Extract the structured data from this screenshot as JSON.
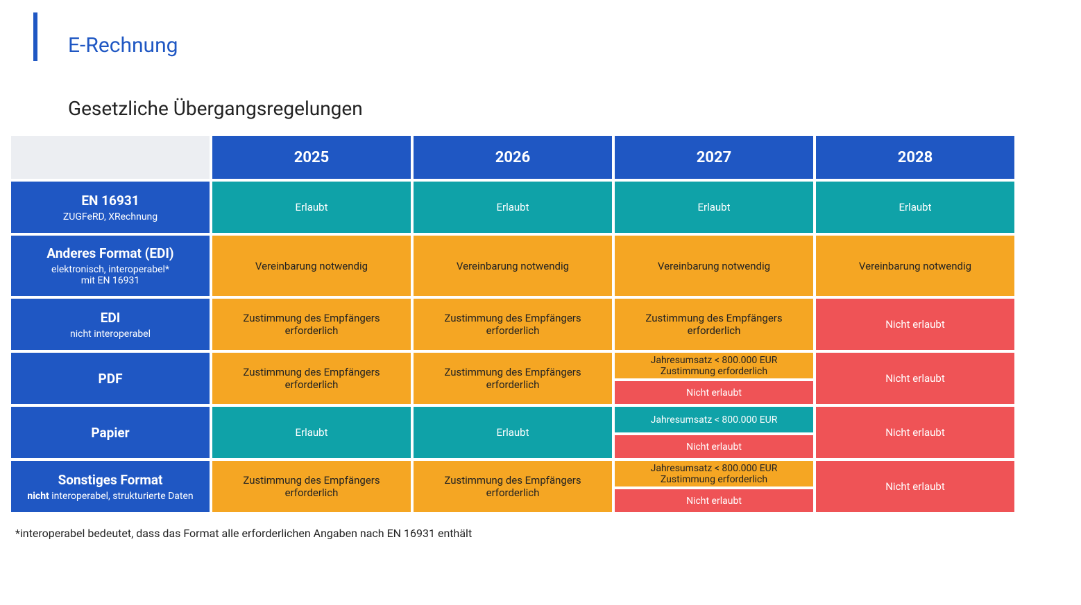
{
  "title": "E-Rechnung",
  "subtitle": "Gesetzliche Übergangsregelungen",
  "footnote": "*interoperabel bedeutet, dass das Format alle erforderlichen Angaben nach EN 16931 enthält",
  "colors": {
    "blue": "#1f57c3",
    "teal": "#0fa2a8",
    "orange": "#f5a623",
    "red": "#ef5356",
    "corner_bg": "#eceef2",
    "text_dark": "#222222",
    "text_light": "#ffffff"
  },
  "years": [
    "2025",
    "2026",
    "2027",
    "2028"
  ],
  "rows": [
    {
      "label_main": "EN 16931",
      "label_sub": "ZUGFeRD, XRechnung",
      "cells": [
        {
          "type": "single",
          "color": "teal",
          "text": "Erlaubt"
        },
        {
          "type": "single",
          "color": "teal",
          "text": "Erlaubt"
        },
        {
          "type": "single",
          "color": "teal",
          "text": "Erlaubt"
        },
        {
          "type": "single",
          "color": "teal",
          "text": "Erlaubt"
        }
      ]
    },
    {
      "label_main": "Anderes Format (EDI)",
      "label_sub_html": "elektronisch, interoperabel*<br>mit EN 16931",
      "cells": [
        {
          "type": "single",
          "color": "orange",
          "text": "Vereinbarung notwendig"
        },
        {
          "type": "single",
          "color": "orange",
          "text": "Vereinbarung notwendig"
        },
        {
          "type": "single",
          "color": "orange",
          "text": "Vereinbarung notwendig"
        },
        {
          "type": "single",
          "color": "orange",
          "text": "Vereinbarung notwendig"
        }
      ]
    },
    {
      "label_main": "EDI",
      "label_sub": "nicht interoperabel",
      "cells": [
        {
          "type": "single",
          "color": "orange",
          "text_html": "Zustimmung des Empfängers<br>erforderlich"
        },
        {
          "type": "single",
          "color": "orange",
          "text_html": "Zustimmung des Empfängers<br>erforderlich"
        },
        {
          "type": "single",
          "color": "orange",
          "text_html": "Zustimmung des Empfängers<br>erforderlich"
        },
        {
          "type": "single",
          "color": "red",
          "text": "Nicht erlaubt"
        }
      ]
    },
    {
      "label_main": "PDF",
      "label_sub": "",
      "cells": [
        {
          "type": "single",
          "color": "orange",
          "text_html": "Zustimmung des Empfängers<br>erforderlich"
        },
        {
          "type": "single",
          "color": "orange",
          "text_html": "Zustimmung des Empfängers<br>erforderlich"
        },
        {
          "type": "split",
          "top": {
            "color": "orange",
            "text_html": "Jahresumsatz < 800.000 EUR<br>Zustimmung erforderlich"
          },
          "bottom": {
            "color": "red",
            "text": "Nicht erlaubt"
          }
        },
        {
          "type": "single",
          "color": "red",
          "text": "Nicht erlaubt"
        }
      ]
    },
    {
      "label_main": "Papier",
      "label_sub": "",
      "cells": [
        {
          "type": "single",
          "color": "teal",
          "text": "Erlaubt"
        },
        {
          "type": "single",
          "color": "teal",
          "text": "Erlaubt"
        },
        {
          "type": "split",
          "top": {
            "color": "teal",
            "text": "Jahresumsatz < 800.000 EUR"
          },
          "bottom": {
            "color": "red",
            "text": "Nicht erlaubt"
          }
        },
        {
          "type": "single",
          "color": "red",
          "text": "Nicht erlaubt"
        }
      ]
    },
    {
      "label_main": "Sonstiges Format",
      "label_sub_html": "<b>nicht</b> interoperabel, strukturierte Daten",
      "cells": [
        {
          "type": "single",
          "color": "orange",
          "text_html": "Zustimmung des Empfängers<br>erforderlich"
        },
        {
          "type": "single",
          "color": "orange",
          "text_html": "Zustimmung des Empfängers<br>erforderlich"
        },
        {
          "type": "split",
          "top": {
            "color": "orange",
            "text_html": "Jahresumsatz < 800.000 EUR<br>Zustimmung erforderlich"
          },
          "bottom": {
            "color": "red",
            "text": "Nicht erlaubt"
          }
        },
        {
          "type": "single",
          "color": "red",
          "text": "Nicht erlaubt"
        }
      ]
    }
  ]
}
